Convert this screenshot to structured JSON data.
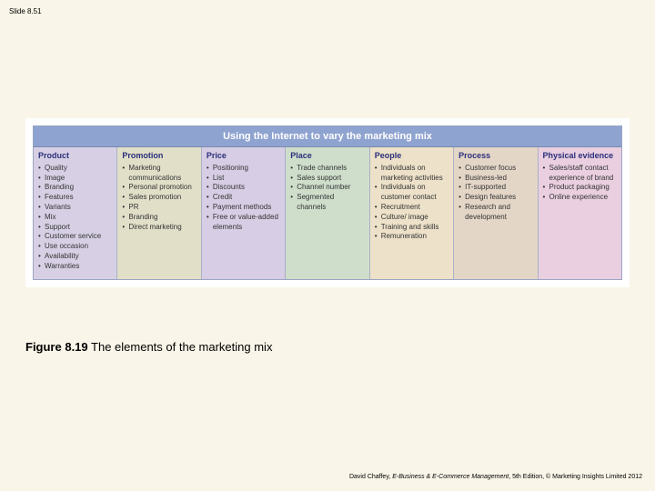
{
  "slide_number": "Slide 8.51",
  "chart": {
    "title": "Using the Internet to vary the marketing mix",
    "title_bg": "#8fa3d0",
    "title_color": "#ffffff",
    "border_color": "#9aa5c4",
    "header_color": "#2a2f7a",
    "columns": [
      {
        "header": "Product",
        "bg": "#d7d0e5",
        "items": [
          "Quality",
          "Image",
          "Branding",
          "Features",
          "Variants",
          "Mix",
          "Support",
          "Customer service",
          "Use occasion",
          "Availability",
          "Warranties"
        ]
      },
      {
        "header": "Promotion",
        "bg": "#e1dfc8",
        "items": [
          "Marketing communications",
          "Personal promotion",
          "Sales promotion",
          "PR",
          "Branding",
          "Direct marketing"
        ]
      },
      {
        "header": "Price",
        "bg": "#d7cde4",
        "items": [
          "Positioning",
          "List",
          "Discounts",
          "Credit",
          "Payment methods",
          "Free or value-added elements"
        ]
      },
      {
        "header": "Place",
        "bg": "#cedecb",
        "items": [
          "Trade channels",
          "Sales support",
          "Channel number",
          "Segmented channels"
        ]
      },
      {
        "header": "People",
        "bg": "#ede1c9",
        "items": [
          "Individuals on marketing activities",
          "Individuals on customer contact",
          "Recruitment",
          "Culture/ image",
          "Training and skills",
          "Remuneration"
        ]
      },
      {
        "header": "Process",
        "bg": "#e4d6c7",
        "items": [
          "Customer focus",
          "Business-led",
          "IT-supported",
          "Design features",
          "Research and development"
        ]
      },
      {
        "header": "Physical evidence",
        "bg": "#e9cfe0",
        "items": [
          "Sales/staff contact experience of brand",
          "Product packaging",
          "Online experience"
        ]
      }
    ]
  },
  "caption": {
    "fignum": "Figure 8.19",
    "text": "The elements of the marketing mix"
  },
  "footer": {
    "author": "David Chaffey, ",
    "title_italic": "E-Business & E-Commerce Management",
    "rest": ", 5th Edition, © Marketing Insights Limited 2012"
  }
}
